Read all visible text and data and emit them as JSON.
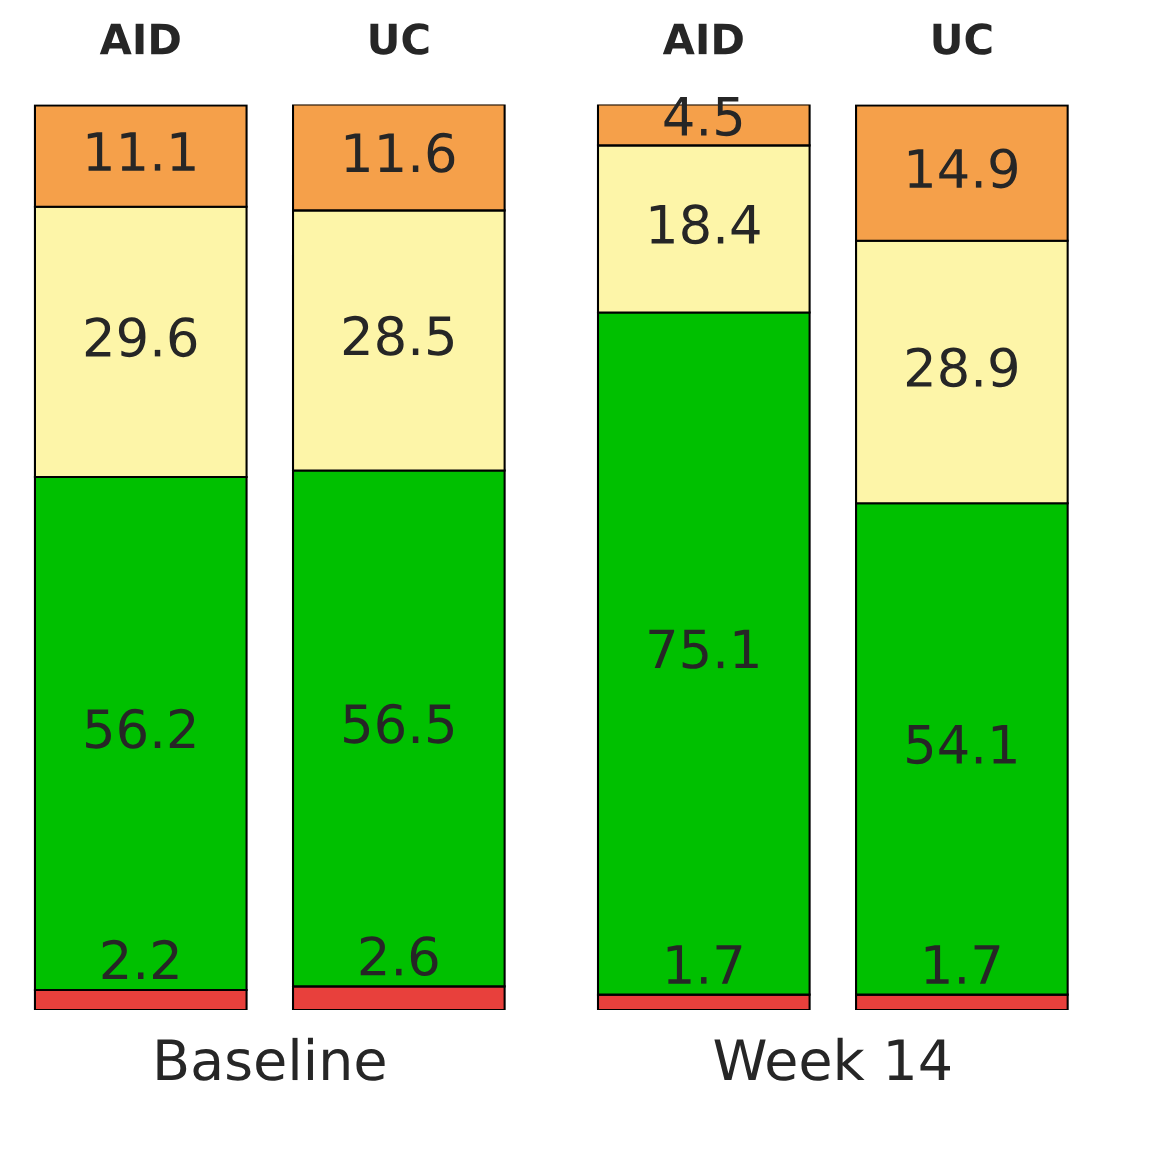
{
  "chart_data": [
    {
      "type": "bar",
      "stacked": true,
      "data_labels": true,
      "xlabel": "Baseline",
      "categories": [
        "AID",
        "UC"
      ],
      "series": [
        {
          "color": "#e8403c",
          "values": [
            2.2,
            2.6
          ]
        },
        {
          "color": "#00c000",
          "values": [
            56.2,
            56.5
          ]
        },
        {
          "color": "#fdf5a8",
          "values": [
            29.6,
            28.5
          ]
        },
        {
          "color": "#f5a04a",
          "values": [
            11.1,
            11.6
          ]
        }
      ]
    },
    {
      "type": "bar",
      "stacked": true,
      "data_labels": true,
      "xlabel": "Week 14",
      "categories": [
        "AID",
        "UC"
      ],
      "series": [
        {
          "color": "#e8403c",
          "values": [
            1.7,
            1.7
          ]
        },
        {
          "color": "#00c000",
          "values": [
            75.1,
            54.1
          ]
        },
        {
          "color": "#fdf5a8",
          "values": [
            18.4,
            28.9
          ]
        },
        {
          "color": "#f5a04a",
          "values": [
            4.5,
            14.9
          ]
        }
      ]
    }
  ]
}
